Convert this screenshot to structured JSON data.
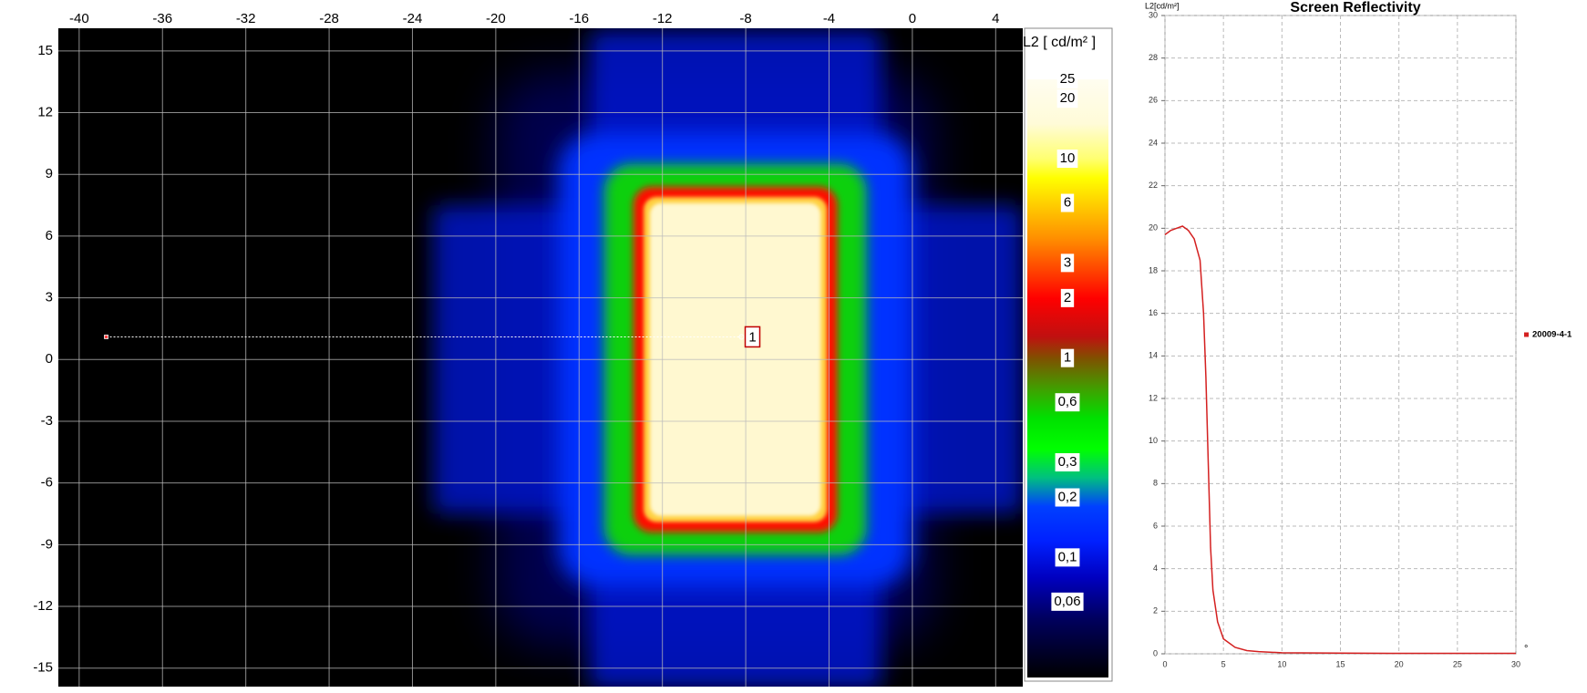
{
  "chart_data": [
    {
      "type": "heatmap",
      "xlim": [
        -41,
        5.3
      ],
      "ylim": [
        -15.9,
        16.1
      ],
      "xticks": [
        -40,
        -36,
        -32,
        -28,
        -24,
        -20,
        -16,
        -12,
        -8,
        -4,
        0,
        4
      ],
      "yticks": [
        15,
        12,
        9,
        6,
        3,
        0,
        -3,
        -6,
        -9,
        -12,
        -15
      ],
      "grid": true,
      "marker": {
        "label": "1",
        "x": [
          -38.7,
          -8.2
        ],
        "y": [
          1.1,
          1.1
        ]
      },
      "colorbar": {
        "label": "L2 [ cd/m² ]",
        "scale": "log",
        "lim": [
          0.025,
          25
        ],
        "ticks": [
          25,
          20,
          10,
          6,
          3,
          2,
          1,
          {
            "value": 0.6,
            "label": "0,6"
          },
          {
            "value": 0.3,
            "label": "0,3"
          },
          {
            "value": 0.2,
            "label": "0,2"
          },
          {
            "value": 0.1,
            "label": "0,1"
          },
          {
            "value": 0.06,
            "label": "0,06"
          }
        ]
      }
    },
    {
      "type": "line",
      "title": "Screen Reflectivity",
      "ylabel": "L2[cd/m²]",
      "xlabel": "°",
      "xlim": [
        0,
        30
      ],
      "ylim": [
        0,
        30
      ],
      "xticks": [
        0,
        5,
        10,
        15,
        20,
        25,
        30
      ],
      "yticks": [
        0,
        2,
        4,
        6,
        8,
        10,
        12,
        14,
        16,
        18,
        20,
        22,
        24,
        26,
        28,
        30
      ],
      "grid": true,
      "x": [
        0,
        0.5,
        1,
        1.5,
        2,
        2.5,
        3,
        3.3,
        3.5,
        3.7,
        3.9,
        4.1,
        4.5,
        5,
        6,
        7,
        8,
        10,
        15,
        20,
        25,
        30
      ],
      "series": [
        {
          "name": "20009-4-1",
          "color": "#d42020",
          "values": [
            19.7,
            19.9,
            20.0,
            20.1,
            19.9,
            19.5,
            18.5,
            16,
            13,
            9,
            5,
            3,
            1.5,
            0.7,
            0.3,
            0.15,
            0.1,
            0.05,
            0.03,
            0.02,
            0.02,
            0.02
          ]
        }
      ]
    }
  ]
}
